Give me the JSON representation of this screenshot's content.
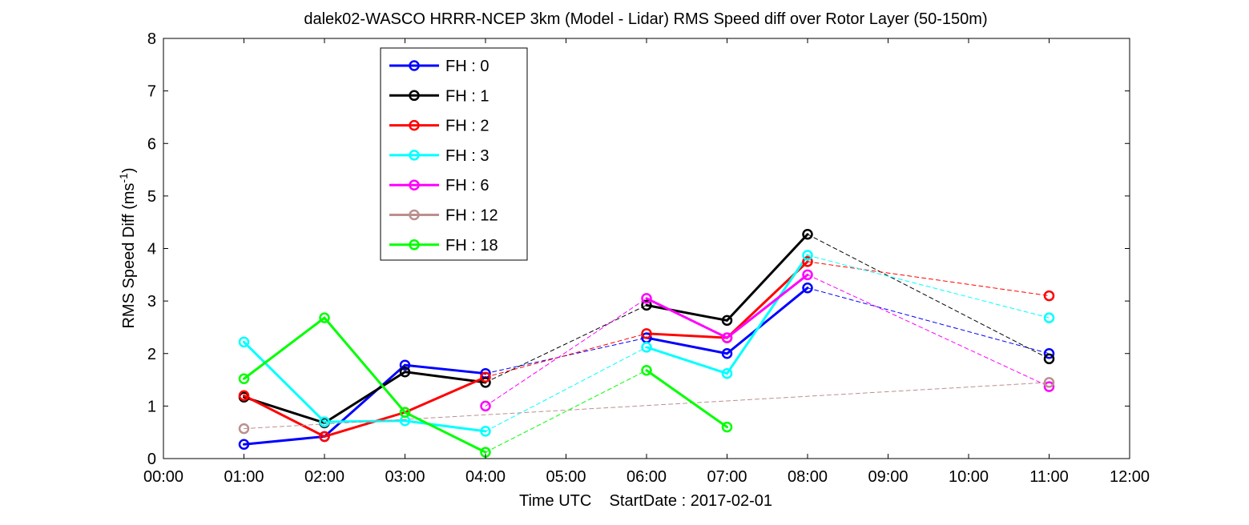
{
  "chart_data": {
    "type": "line",
    "title": "dalek02-WASCO HRRR-NCEP 3km (Model - Lidar) RMS Speed diff over Rotor Layer (50-150m)",
    "xlabel": "Time UTC    StartDate : 2017-02-01",
    "ylabel": "RMS Speed Diff (ms",
    "ylabel_sup": "-1",
    "ylabel_close": ")",
    "xlim": [
      0,
      12
    ],
    "ylim": [
      0,
      8
    ],
    "x_ticks": [
      0,
      1,
      2,
      3,
      4,
      5,
      6,
      7,
      8,
      9,
      10,
      11,
      12
    ],
    "x_tick_labels": [
      "00:00",
      "01:00",
      "02:00",
      "03:00",
      "04:00",
      "05:00",
      "06:00",
      "07:00",
      "08:00",
      "09:00",
      "10:00",
      "11:00",
      "12:00"
    ],
    "y_ticks": [
      0,
      1,
      2,
      3,
      4,
      5,
      6,
      7,
      8
    ],
    "y_tick_labels": [
      "0",
      "1",
      "2",
      "3",
      "4",
      "5",
      "6",
      "7",
      "8"
    ],
    "grid": false,
    "legend_position": "top-left",
    "series": [
      {
        "name": "FH : 0",
        "color": "#0000ff",
        "x": [
          1,
          2,
          3,
          4,
          6,
          7,
          8,
          11
        ],
        "y": [
          0.27,
          0.42,
          1.78,
          1.62,
          2.3,
          2.0,
          3.25,
          2.0
        ]
      },
      {
        "name": "FH : 1",
        "color": "#000000",
        "x": [
          1,
          2,
          3,
          4,
          6,
          7,
          8,
          11
        ],
        "y": [
          1.17,
          0.68,
          1.65,
          1.45,
          2.92,
          2.63,
          4.27,
          1.9
        ]
      },
      {
        "name": "FH : 2",
        "color": "#ff0000",
        "x": [
          1,
          2,
          3,
          4,
          6,
          7,
          8,
          11
        ],
        "y": [
          1.2,
          0.42,
          0.88,
          1.55,
          2.38,
          2.3,
          3.75,
          3.1
        ]
      },
      {
        "name": "FH : 3",
        "color": "#00ffff",
        "x": [
          1,
          2,
          3,
          4,
          6,
          7,
          8,
          11
        ],
        "y": [
          2.22,
          0.7,
          0.72,
          0.52,
          2.12,
          1.62,
          3.87,
          2.68
        ]
      },
      {
        "name": "FH : 6",
        "color": "#ff00ff",
        "x": [
          4,
          6,
          7,
          8,
          11
        ],
        "y": [
          1.0,
          3.05,
          2.3,
          3.5,
          1.37
        ]
      },
      {
        "name": "FH : 12",
        "color": "#bc8f8f",
        "x": [
          1,
          11
        ],
        "y": [
          0.57,
          1.45
        ]
      },
      {
        "name": "FH : 18",
        "color": "#00ff00",
        "x": [
          1,
          2,
          3,
          4,
          6,
          7
        ],
        "y": [
          1.52,
          2.68,
          0.88,
          0.12,
          1.68,
          0.6
        ]
      }
    ]
  }
}
